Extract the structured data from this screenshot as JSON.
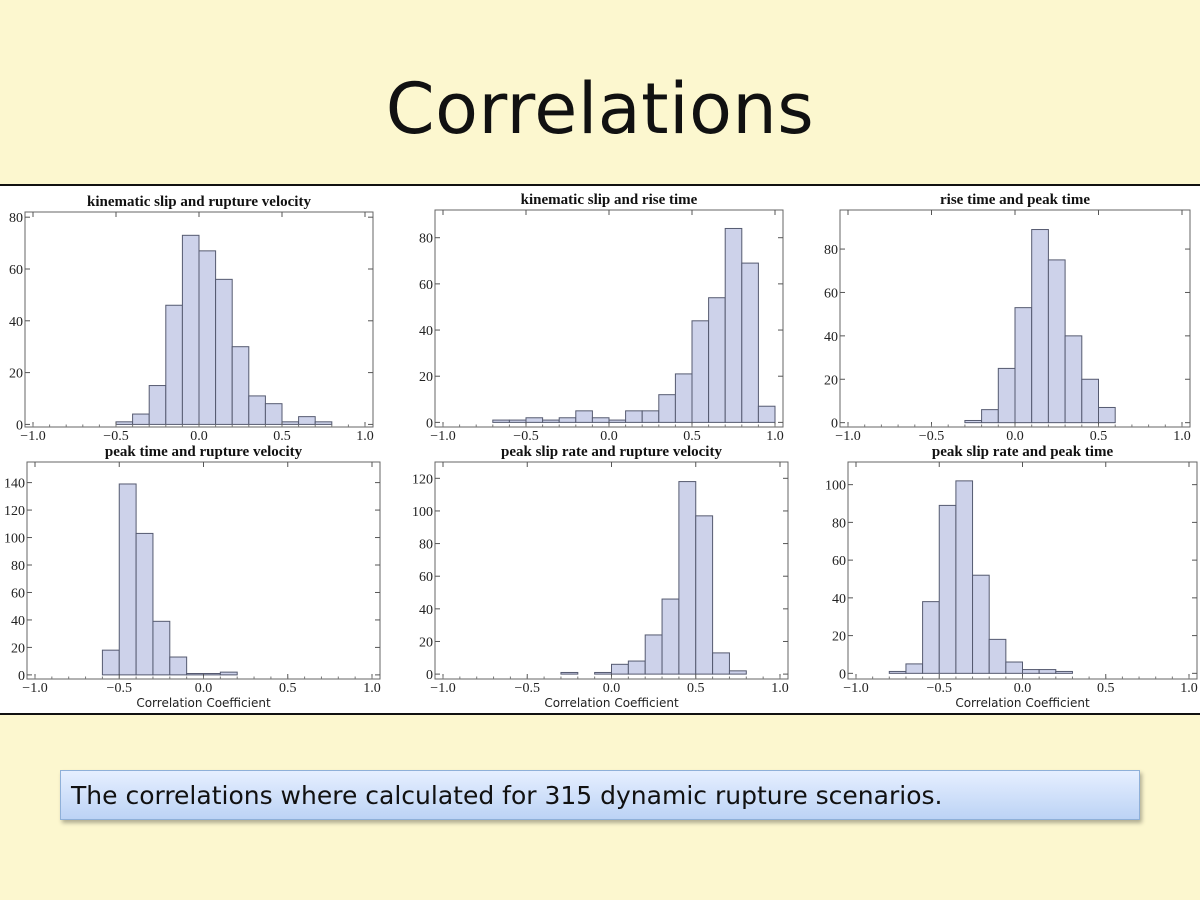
{
  "slide": {
    "title": "Correlations",
    "caption": "The correlations where calculated for 315 dynamic rupture scenarios."
  },
  "colors": {
    "background": "#fcf7cf",
    "bar_fill": "#cdd2ea",
    "bar_stroke": "#555a70"
  },
  "chart_data": [
    {
      "type": "bar",
      "title": "kinematic slip and rupture velocity",
      "xlabel": "",
      "bin_width": 0.1,
      "bin_starts": [
        -0.5,
        -0.4,
        -0.3,
        -0.2,
        -0.1,
        0.0,
        0.1,
        0.2,
        0.3,
        0.4,
        0.5,
        0.6,
        0.7
      ],
      "values": [
        1,
        4,
        15,
        46,
        73,
        67,
        56,
        30,
        11,
        8,
        1,
        3,
        1
      ],
      "xlim": [
        -1,
        1
      ],
      "ylim": [
        -1,
        82
      ],
      "xticks": [
        "-1.0",
        "-0.5",
        "0.0",
        "0.5",
        "1.0"
      ],
      "yticks": [
        0,
        20,
        40,
        60,
        80
      ]
    },
    {
      "type": "bar",
      "title": "kinematic slip and rise time",
      "xlabel": "",
      "bin_width": 0.1,
      "bin_starts": [
        -0.7,
        -0.6,
        -0.5,
        -0.4,
        -0.3,
        -0.2,
        -0.1,
        0.0,
        0.1,
        0.2,
        0.3,
        0.4,
        0.5,
        0.6,
        0.7,
        0.8,
        0.9
      ],
      "values": [
        1,
        1,
        2,
        1,
        2,
        5,
        2,
        1,
        5,
        5,
        12,
        21,
        44,
        54,
        84,
        69,
        7
      ],
      "xlim": [
        -1,
        1
      ],
      "ylim": [
        -2,
        92
      ],
      "xticks": [
        "-1.0",
        "-0.5",
        "0.0",
        "0.5",
        "1.0"
      ],
      "yticks": [
        0,
        20,
        40,
        60,
        80
      ]
    },
    {
      "type": "bar",
      "title": "rise time and peak time",
      "xlabel": "",
      "bin_width": 0.1,
      "bin_starts": [
        -0.3,
        -0.2,
        -0.1,
        0.0,
        0.1,
        0.2,
        0.3,
        0.4,
        0.5
      ],
      "values": [
        1,
        6,
        25,
        53,
        89,
        75,
        40,
        20,
        7
      ],
      "xlim": [
        -1,
        1
      ],
      "ylim": [
        -2,
        98
      ],
      "xticks": [
        "-1.0",
        "-0.5",
        "0.0",
        "0.5",
        "1.0"
      ],
      "yticks": [
        0,
        20,
        40,
        60,
        80
      ]
    },
    {
      "type": "bar",
      "title": "peak time and rupture velocity",
      "xlabel": "Correlation Coefficient",
      "bin_width": 0.1,
      "bin_starts": [
        -0.6,
        -0.5,
        -0.4,
        -0.3,
        -0.2,
        -0.1,
        0.0,
        0.1
      ],
      "values": [
        18,
        139,
        103,
        39,
        13,
        1,
        1,
        2
      ],
      "xlim": [
        -1,
        1
      ],
      "ylim": [
        -3,
        155
      ],
      "xticks": [
        "-1.0",
        "-0.5",
        "0.0",
        "0.5",
        "1.0"
      ],
      "yticks": [
        0,
        20,
        40,
        60,
        80,
        100,
        120,
        140
      ]
    },
    {
      "type": "bar",
      "title": "peak slip rate and rupture velocity",
      "xlabel": "Correlation Coefficient",
      "bin_width": 0.1,
      "bin_starts": [
        -0.3,
        -0.2,
        -0.1,
        0.0,
        0.1,
        0.2,
        0.3,
        0.4,
        0.5,
        0.6,
        0.7
      ],
      "values": [
        1,
        0,
        1,
        6,
        8,
        24,
        46,
        118,
        97,
        13,
        2
      ],
      "xlim": [
        -1,
        1
      ],
      "ylim": [
        -3,
        130
      ],
      "xticks": [
        "-1.0",
        "-0.5",
        "0.0",
        "0.5",
        "1.0"
      ],
      "yticks": [
        0,
        20,
        40,
        60,
        80,
        100,
        120
      ]
    },
    {
      "type": "bar",
      "title": "peak slip rate and peak time",
      "xlabel": "Correlation Coefficient",
      "bin_width": 0.1,
      "bin_starts": [
        -0.8,
        -0.7,
        -0.6,
        -0.5,
        -0.4,
        -0.3,
        -0.2,
        -0.1,
        0.0,
        0.1,
        0.2
      ],
      "values": [
        1,
        5,
        38,
        89,
        102,
        52,
        18,
        6,
        2,
        2,
        1
      ],
      "xlim": [
        -1,
        1
      ],
      "ylim": [
        -3,
        112
      ],
      "xticks": [
        "-1.0",
        "-0.5",
        "0.0",
        "0.5",
        "1.0"
      ],
      "yticks": [
        0,
        20,
        40,
        60,
        80,
        100
      ]
    }
  ]
}
